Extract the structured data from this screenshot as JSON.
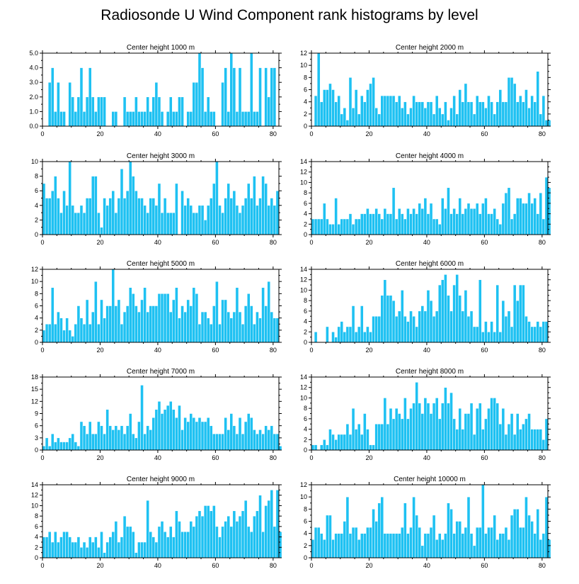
{
  "title": "Radiosonde U Wind Component rank histograms by level",
  "colors": {
    "bar": "#1ec1f2",
    "frame": "#000000",
    "background": "#ffffff"
  },
  "chart_data": [
    {
      "type": "bar",
      "title": "Center height 1000 m",
      "xlim": [
        0,
        82
      ],
      "ylim": [
        0,
        5
      ],
      "xticks": [
        "0",
        "20",
        "40",
        "60",
        "80"
      ],
      "yticks": [
        "0.0",
        "1.0",
        "2.0",
        "3.0",
        "4.0",
        "5.0"
      ],
      "values": [
        0,
        0,
        3,
        4,
        1,
        3,
        1,
        1,
        0,
        3,
        2,
        1,
        2,
        4,
        1,
        2,
        4,
        2,
        1,
        2,
        2,
        2,
        0,
        0,
        1,
        1,
        0,
        0,
        2,
        1,
        1,
        1,
        2,
        1,
        1,
        1,
        2,
        1,
        2,
        3,
        2,
        1,
        0,
        1,
        2,
        1,
        1,
        2,
        2,
        0,
        1,
        1,
        3,
        3,
        5,
        4,
        1,
        2,
        1,
        1,
        0,
        0,
        3,
        4,
        1,
        5,
        4,
        1,
        4,
        1,
        1,
        1,
        5,
        1,
        1,
        4,
        0,
        4,
        2,
        4,
        4,
        0
      ]
    },
    {
      "type": "bar",
      "title": "Center height 2000 m",
      "xlim": [
        0,
        82
      ],
      "ylim": [
        0,
        12
      ],
      "xticks": [
        "0",
        "20",
        "40",
        "60",
        "80"
      ],
      "yticks": [
        "0",
        "2",
        "4",
        "6",
        "8",
        "10",
        "12"
      ],
      "values": [
        0,
        5,
        12,
        4,
        6,
        6,
        7,
        6,
        4,
        5,
        2,
        3,
        1,
        8,
        3,
        6,
        2,
        5,
        4,
        6,
        7,
        8,
        3,
        2,
        5,
        5,
        5,
        5,
        5,
        4,
        5,
        3,
        4,
        2,
        3,
        5,
        4,
        4,
        4,
        3,
        4,
        4,
        2,
        5,
        3,
        2,
        4,
        1,
        3,
        5,
        2,
        6,
        4,
        7,
        4,
        4,
        2,
        5,
        4,
        4,
        3,
        5,
        4,
        2,
        4,
        6,
        4,
        4,
        8,
        8,
        7,
        4,
        5,
        4,
        6,
        3,
        5,
        4,
        9,
        2,
        5,
        1,
        1,
        0
      ]
    },
    {
      "type": "bar",
      "title": "Center height 3000 m",
      "xlim": [
        0,
        82
      ],
      "ylim": [
        0,
        10
      ],
      "xticks": [
        "0",
        "20",
        "40",
        "60",
        "80"
      ],
      "yticks": [
        "0",
        "2",
        "4",
        "6",
        "8",
        "10"
      ],
      "values": [
        7,
        5,
        5,
        6,
        8,
        5,
        3,
        6,
        4,
        10,
        4,
        3,
        3,
        4,
        3,
        5,
        5,
        8,
        8,
        3,
        1,
        5,
        4,
        5,
        6,
        3,
        5,
        9,
        5,
        6,
        10,
        8,
        6,
        5,
        5,
        4,
        3,
        5,
        5,
        4,
        7,
        3,
        5,
        3,
        3,
        3,
        7,
        0,
        6,
        4,
        5,
        4,
        3,
        3,
        4,
        4,
        2,
        4,
        5,
        7,
        10,
        4,
        3,
        5,
        7,
        5,
        6,
        4,
        3,
        4,
        5,
        7,
        5,
        8,
        4,
        5,
        8,
        7,
        4,
        5,
        4,
        6
      ]
    },
    {
      "type": "bar",
      "title": "Center height 4000 m",
      "xlim": [
        0,
        82
      ],
      "ylim": [
        0,
        14
      ],
      "xticks": [
        "0",
        "20",
        "40",
        "60",
        "80"
      ],
      "yticks": [
        "0",
        "2",
        "4",
        "6",
        "8",
        "10",
        "12",
        "14"
      ],
      "values": [
        3,
        3,
        3,
        3,
        6,
        3,
        2,
        2,
        7,
        2,
        3,
        3,
        3,
        4,
        2,
        3,
        3,
        4,
        4,
        5,
        4,
        4,
        5,
        4,
        3,
        5,
        4,
        4,
        9,
        3,
        5,
        4,
        3,
        5,
        4,
        5,
        4,
        6,
        5,
        7,
        4,
        6,
        3,
        3,
        2,
        7,
        5,
        9,
        4,
        5,
        4,
        7,
        4,
        5,
        6,
        5,
        5,
        6,
        4,
        6,
        7,
        4,
        4,
        5,
        3,
        2,
        6,
        8,
        9,
        3,
        4,
        7,
        7,
        6,
        6,
        8,
        6,
        7,
        4,
        8,
        3,
        11,
        9
      ]
    },
    {
      "type": "bar",
      "title": "Center height 5000 m",
      "xlim": [
        0,
        82
      ],
      "ylim": [
        0,
        12
      ],
      "xticks": [
        "0",
        "20",
        "40",
        "60",
        "80"
      ],
      "yticks": [
        "0",
        "2",
        "4",
        "6",
        "8",
        "10",
        "12"
      ],
      "values": [
        2,
        3,
        3,
        9,
        3,
        5,
        4,
        2,
        4,
        2,
        1,
        3,
        6,
        4,
        3,
        7,
        3,
        5,
        10,
        3,
        7,
        4,
        6,
        6,
        12,
        6,
        7,
        3,
        5,
        6,
        9,
        8,
        6,
        5,
        7,
        9,
        5,
        6,
        6,
        6,
        8,
        8,
        8,
        8,
        5,
        7,
        9,
        4,
        6,
        5,
        7,
        6,
        9,
        8,
        3,
        5,
        5,
        4,
        3,
        6,
        10,
        3,
        7,
        7,
        5,
        4,
        5,
        9,
        5,
        3,
        6,
        8,
        6,
        3,
        5,
        4,
        9,
        6,
        10,
        5,
        4,
        4
      ]
    },
    {
      "type": "bar",
      "title": "Center height 6000 m",
      "xlim": [
        0,
        82
      ],
      "ylim": [
        0,
        14
      ],
      "xticks": [
        "0",
        "20",
        "40",
        "60",
        "80"
      ],
      "yticks": [
        "0",
        "2",
        "4",
        "6",
        "8",
        "10",
        "12",
        "14"
      ],
      "values": [
        0,
        2,
        0,
        0,
        0,
        3,
        0,
        2,
        1,
        3,
        4,
        2,
        3,
        3,
        7,
        2,
        3,
        7,
        2,
        3,
        2,
        5,
        5,
        5,
        9,
        12,
        9,
        9,
        8,
        5,
        6,
        10,
        5,
        4,
        6,
        5,
        3,
        6,
        7,
        6,
        10,
        8,
        5,
        6,
        11,
        12,
        13,
        9,
        6,
        11,
        13,
        9,
        6,
        10,
        5,
        6,
        3,
        3,
        12,
        2,
        4,
        2,
        4,
        2,
        11,
        2,
        8,
        5,
        6,
        3,
        11,
        8,
        11,
        11,
        5,
        4,
        3,
        3,
        4,
        3,
        4,
        4
      ]
    },
    {
      "type": "bar",
      "title": "Center height 7000 m",
      "xlim": [
        0,
        82
      ],
      "ylim": [
        0,
        18
      ],
      "xticks": [
        "0",
        "20",
        "40",
        "60",
        "80"
      ],
      "yticks": [
        "0",
        "3",
        "6",
        "9",
        "12",
        "15",
        "18"
      ],
      "values": [
        1,
        3,
        1,
        4,
        2,
        3,
        2,
        2,
        2,
        3,
        4,
        2,
        1,
        7,
        6,
        4,
        7,
        4,
        4,
        7,
        6,
        4,
        10,
        6,
        5,
        6,
        5,
        6,
        4,
        6,
        9,
        4,
        3,
        7,
        16,
        4,
        6,
        5,
        8,
        10,
        12,
        9,
        10,
        11,
        12,
        10,
        8,
        11,
        5,
        8,
        7,
        9,
        8,
        7,
        8,
        7,
        7,
        8,
        6,
        4,
        4,
        4,
        4,
        8,
        5,
        9,
        6,
        4,
        8,
        4,
        7,
        9,
        8,
        5,
        4,
        5,
        4,
        6,
        5,
        6,
        4,
        4,
        1
      ]
    },
    {
      "type": "bar",
      "title": "Center height 8000 m",
      "xlim": [
        0,
        82
      ],
      "ylim": [
        0,
        14
      ],
      "xticks": [
        "0",
        "20",
        "40",
        "60",
        "80"
      ],
      "yticks": [
        "0",
        "2",
        "4",
        "6",
        "8",
        "10",
        "12",
        "14"
      ],
      "values": [
        1,
        1,
        0,
        1,
        2,
        1,
        4,
        3,
        2,
        3,
        3,
        3,
        5,
        3,
        8,
        4,
        5,
        3,
        7,
        4,
        1,
        1,
        5,
        5,
        5,
        10,
        5,
        8,
        6,
        8,
        7,
        6,
        10,
        6,
        8,
        9,
        13,
        9,
        7,
        10,
        9,
        7,
        9,
        10,
        6,
        9,
        12,
        9,
        11,
        6,
        4,
        8,
        4,
        7,
        7,
        9,
        3,
        8,
        9,
        4,
        6,
        8,
        10,
        10,
        9,
        5,
        8,
        3,
        5,
        7,
        3,
        7,
        4,
        5,
        6,
        7,
        4,
        4,
        4,
        4,
        2,
        6
      ]
    },
    {
      "type": "bar",
      "title": "Center height 9000 m",
      "xlim": [
        0,
        82
      ],
      "ylim": [
        0,
        14
      ],
      "xticks": [
        "0",
        "20",
        "40",
        "60",
        "80"
      ],
      "yticks": [
        "0",
        "2",
        "4",
        "6",
        "8",
        "10",
        "12",
        "14"
      ],
      "values": [
        4,
        4,
        5,
        3,
        5,
        3,
        4,
        5,
        5,
        4,
        3,
        3,
        4,
        2,
        3,
        2,
        4,
        3,
        4,
        2,
        5,
        1,
        3,
        4,
        5,
        7,
        3,
        4,
        8,
        6,
        6,
        5,
        1,
        3,
        3,
        3,
        11,
        5,
        4,
        3,
        6,
        7,
        5,
        4,
        6,
        4,
        9,
        7,
        5,
        5,
        5,
        7,
        6,
        8,
        9,
        8,
        10,
        10,
        9,
        10,
        6,
        4,
        6,
        7,
        8,
        6,
        9,
        7,
        8,
        9,
        11,
        6,
        5,
        8,
        9,
        12,
        5,
        10,
        11,
        13,
        6,
        13,
        5
      ]
    },
    {
      "type": "bar",
      "title": "Center height 10000 m",
      "xlim": [
        0,
        82
      ],
      "ylim": [
        0,
        12
      ],
      "xticks": [
        "0",
        "20",
        "40",
        "60",
        "80"
      ],
      "yticks": [
        "0",
        "2",
        "4",
        "6",
        "8",
        "10",
        "12"
      ],
      "values": [
        3,
        5,
        5,
        4,
        3,
        7,
        7,
        3,
        4,
        4,
        4,
        6,
        10,
        4,
        5,
        5,
        3,
        4,
        4,
        5,
        5,
        8,
        6,
        9,
        10,
        4,
        4,
        4,
        4,
        4,
        4,
        5,
        9,
        4,
        5,
        10,
        7,
        5,
        2,
        4,
        4,
        5,
        7,
        3,
        4,
        3,
        4,
        9,
        8,
        4,
        6,
        6,
        4,
        5,
        10,
        4,
        2,
        5,
        5,
        12,
        4,
        5,
        5,
        7,
        3,
        4,
        4,
        5,
        3,
        7,
        8,
        8,
        5,
        5,
        10,
        7,
        6,
        4,
        8,
        3,
        4,
        10,
        3
      ]
    }
  ]
}
